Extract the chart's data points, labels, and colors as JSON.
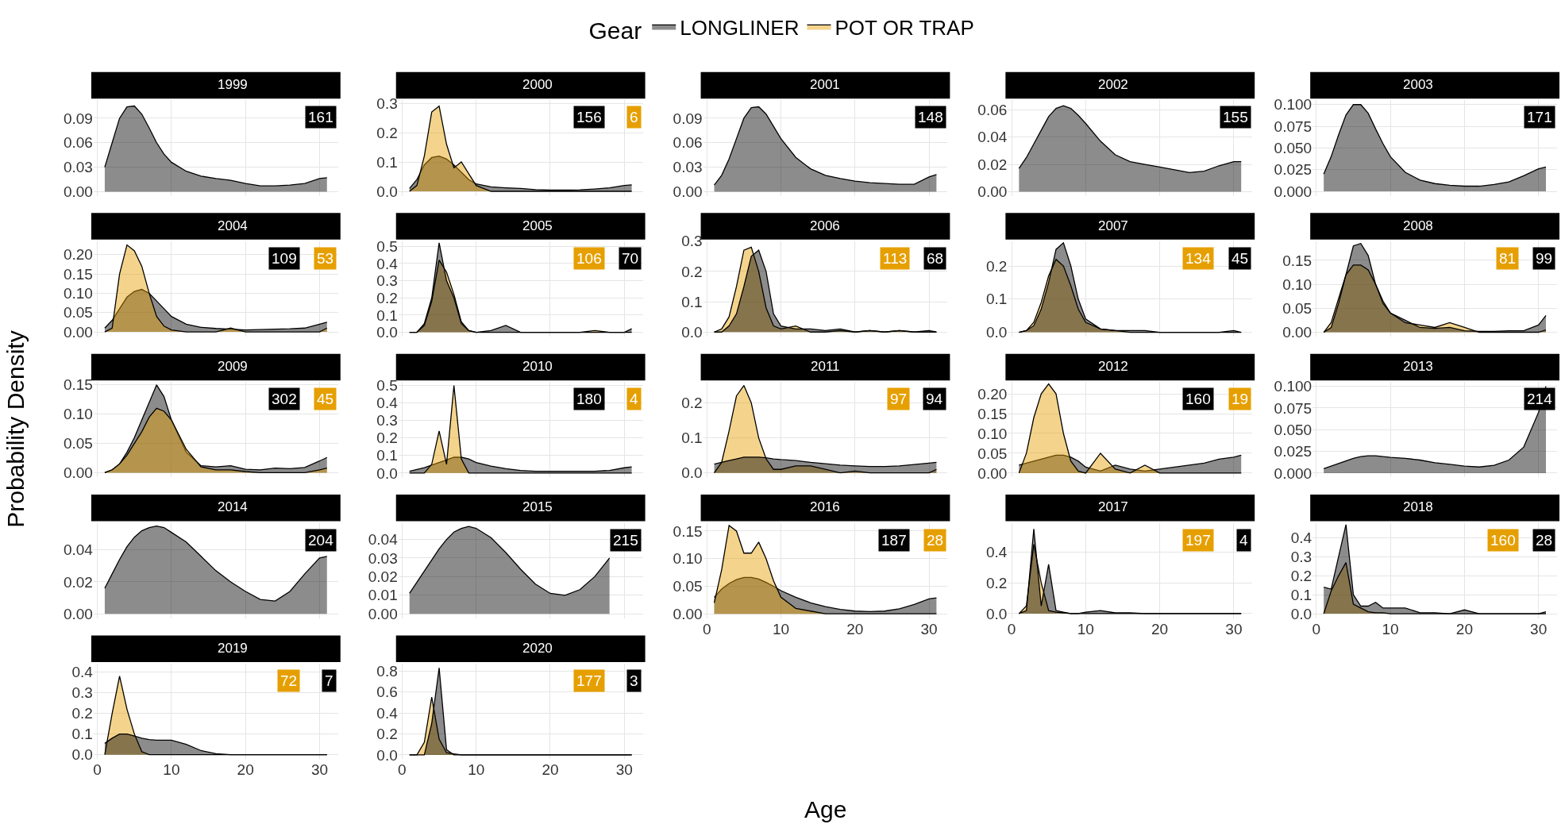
{
  "chart_data": [
    {
      "type": "area",
      "title": "1999",
      "tick_labels": "y",
      "grid": true,
      "x": [
        1,
        2,
        3,
        4,
        5,
        6,
        7,
        8,
        9,
        10,
        12,
        14,
        16,
        18,
        20,
        22,
        24,
        26,
        28,
        30,
        31
      ],
      "xlim": [
        -0.5,
        32.5
      ],
      "xticks": [
        0,
        10,
        20,
        30
      ],
      "ylim": [
        -0.005,
        0.112
      ],
      "yticks": [
        {
          "value": 0,
          "label": "0.00"
        },
        {
          "value": 0.03,
          "label": "0.03"
        },
        {
          "value": 0.06,
          "label": "0.06"
        },
        {
          "value": 0.09,
          "label": "0.09"
        }
      ],
      "annotations": [
        "161"
      ],
      "series": [
        {
          "color": "#000000",
          "values": [
            0.03,
            0.06,
            0.09,
            0.104,
            0.105,
            0.095,
            0.078,
            0.06,
            0.046,
            0.036,
            0.025,
            0.019,
            0.016,
            0.014,
            0.01,
            0.007,
            0.007,
            0.008,
            0.01,
            0.016,
            0.017
          ]
        }
      ]
    },
    {
      "type": "area",
      "title": "2000",
      "tick_labels": "y",
      "grid": true,
      "legend": "top",
      "legend_title": "Gear",
      "x": [
        1,
        2,
        3,
        4,
        5,
        6,
        7,
        8,
        9,
        10,
        12,
        14,
        16,
        18,
        20,
        22,
        24,
        26,
        28,
        30,
        31
      ],
      "xlim": [
        -0.5,
        32.5
      ],
      "xticks": [
        0,
        10,
        20,
        30
      ],
      "ylim": [
        -0.015,
        0.31
      ],
      "yticks": [
        {
          "value": 0,
          "label": "0.0"
        },
        {
          "value": 0.1,
          "label": "0.1"
        },
        {
          "value": 0.2,
          "label": "0.2"
        },
        {
          "value": 0.3,
          "label": "0.3"
        }
      ],
      "annotations": [
        "156",
        "6"
      ],
      "series": [
        {
          "name": "LONGLINER",
          "color": "#000000",
          "values": [
            0.01,
            0.04,
            0.09,
            0.115,
            0.12,
            0.11,
            0.09,
            0.065,
            0.04,
            0.025,
            0.015,
            0.012,
            0.01,
            0.006,
            0.004,
            0.004,
            0.005,
            0.008,
            0.012,
            0.02,
            0.022
          ]
        },
        {
          "name": "POT OR TRAP",
          "color": "#e69f00",
          "values": [
            0,
            0.02,
            0.12,
            0.27,
            0.29,
            0.16,
            0.08,
            0.1,
            0.06,
            0.02,
            0,
            0,
            0,
            0,
            0,
            0,
            0,
            0,
            0,
            0,
            0
          ]
        }
      ]
    },
    {
      "type": "area",
      "title": "2001",
      "tick_labels": "y",
      "grid": true,
      "x": [
        1,
        2,
        3,
        4,
        5,
        6,
        7,
        8,
        9,
        10,
        12,
        14,
        16,
        18,
        20,
        22,
        24,
        26,
        28,
        30,
        31
      ],
      "xlim": [
        -0.5,
        32.5
      ],
      "xticks": [
        0,
        10,
        20,
        30
      ],
      "ylim": [
        -0.005,
        0.112
      ],
      "yticks": [
        {
          "value": 0,
          "label": "0.00"
        },
        {
          "value": 0.03,
          "label": "0.03"
        },
        {
          "value": 0.06,
          "label": "0.06"
        },
        {
          "value": 0.09,
          "label": "0.09"
        }
      ],
      "annotations": [
        "148"
      ],
      "series": [
        {
          "color": "#000000",
          "values": [
            0.008,
            0.02,
            0.04,
            0.065,
            0.09,
            0.103,
            0.104,
            0.095,
            0.08,
            0.065,
            0.042,
            0.028,
            0.02,
            0.016,
            0.013,
            0.011,
            0.01,
            0.009,
            0.009,
            0.018,
            0.021
          ]
        }
      ]
    },
    {
      "type": "area",
      "title": "2002",
      "tick_labels": "y",
      "grid": true,
      "x": [
        1,
        2,
        3,
        4,
        5,
        6,
        7,
        8,
        9,
        10,
        12,
        14,
        16,
        18,
        20,
        22,
        24,
        26,
        28,
        30,
        31
      ],
      "xlim": [
        -0.5,
        32.5
      ],
      "xticks": [
        0,
        10,
        20,
        30
      ],
      "ylim": [
        -0.003,
        0.067
      ],
      "yticks": [
        {
          "value": 0,
          "label": "0.00"
        },
        {
          "value": 0.02,
          "label": "0.02"
        },
        {
          "value": 0.04,
          "label": "0.04"
        },
        {
          "value": 0.06,
          "label": "0.06"
        }
      ],
      "annotations": [
        "155"
      ],
      "series": [
        {
          "color": "#000000",
          "values": [
            0.017,
            0.025,
            0.035,
            0.045,
            0.055,
            0.061,
            0.063,
            0.061,
            0.056,
            0.05,
            0.037,
            0.027,
            0.022,
            0.02,
            0.018,
            0.016,
            0.014,
            0.015,
            0.019,
            0.022,
            0.022
          ]
        }
      ]
    },
    {
      "type": "area",
      "title": "2003",
      "tick_labels": "y",
      "grid": true,
      "x": [
        1,
        2,
        3,
        4,
        5,
        6,
        7,
        8,
        9,
        10,
        12,
        14,
        16,
        18,
        20,
        22,
        24,
        26,
        28,
        30,
        31
      ],
      "xlim": [
        -0.5,
        32.5
      ],
      "xticks": [
        0,
        10,
        20,
        30
      ],
      "ylim": [
        -0.005,
        0.105
      ],
      "yticks": [
        {
          "value": 0,
          "label": "0.000"
        },
        {
          "value": 0.025,
          "label": "0.025"
        },
        {
          "value": 0.05,
          "label": "0.050"
        },
        {
          "value": 0.075,
          "label": "0.075"
        },
        {
          "value": 0.1,
          "label": "0.100"
        }
      ],
      "annotations": [
        "171"
      ],
      "series": [
        {
          "color": "#000000",
          "values": [
            0.02,
            0.04,
            0.065,
            0.088,
            0.1,
            0.1,
            0.09,
            0.072,
            0.055,
            0.04,
            0.022,
            0.013,
            0.009,
            0.007,
            0.006,
            0.006,
            0.008,
            0.011,
            0.018,
            0.026,
            0.028
          ]
        }
      ]
    },
    {
      "type": "area",
      "title": "2004",
      "tick_labels": "y",
      "grid": true,
      "x": [
        1,
        2,
        3,
        4,
        5,
        6,
        7,
        8,
        9,
        10,
        12,
        14,
        16,
        18,
        20,
        22,
        24,
        26,
        28,
        30,
        31
      ],
      "xlim": [
        -0.5,
        32.5
      ],
      "xticks": [
        0,
        10,
        20,
        30
      ],
      "ylim": [
        -0.012,
        0.235
      ],
      "yticks": [
        {
          "value": 0,
          "label": "0.00"
        },
        {
          "value": 0.05,
          "label": "0.05"
        },
        {
          "value": 0.1,
          "label": "0.10"
        },
        {
          "value": 0.15,
          "label": "0.15"
        },
        {
          "value": 0.2,
          "label": "0.20"
        }
      ],
      "annotations": [
        "109",
        "53"
      ],
      "series": [
        {
          "color": "#000000",
          "values": [
            0.01,
            0.03,
            0.06,
            0.09,
            0.105,
            0.11,
            0.1,
            0.08,
            0.06,
            0.04,
            0.02,
            0.012,
            0.009,
            0.007,
            0.005,
            0.006,
            0.007,
            0.008,
            0.01,
            0.02,
            0.025
          ]
        },
        {
          "color": "#e69f00",
          "values": [
            0,
            0.01,
            0.15,
            0.225,
            0.21,
            0.17,
            0.1,
            0.04,
            0.015,
            0.005,
            0,
            0,
            0,
            0.01,
            0,
            0,
            0,
            0,
            0,
            0,
            0.01
          ]
        }
      ]
    },
    {
      "type": "area",
      "title": "2005",
      "tick_labels": "y",
      "grid": true,
      "x": [
        1,
        2,
        3,
        4,
        5,
        6,
        7,
        8,
        9,
        10,
        12,
        14,
        16,
        18,
        20,
        22,
        24,
        26,
        28,
        30,
        31
      ],
      "xlim": [
        -0.5,
        32.5
      ],
      "xticks": [
        0,
        10,
        20,
        30
      ],
      "ylim": [
        -0.025,
        0.53
      ],
      "yticks": [
        {
          "value": 0,
          "label": "0.0"
        },
        {
          "value": 0.1,
          "label": "0.1"
        },
        {
          "value": 0.2,
          "label": "0.2"
        },
        {
          "value": 0.3,
          "label": "0.3"
        },
        {
          "value": 0.4,
          "label": "0.4"
        },
        {
          "value": 0.5,
          "label": "0.5"
        }
      ],
      "annotations": [
        "106",
        "70"
      ],
      "series": [
        {
          "color": "#e69f00",
          "values": [
            0,
            0,
            0.04,
            0.18,
            0.42,
            0.35,
            0.22,
            0.06,
            0.01,
            0,
            0,
            0,
            0,
            0,
            0,
            0,
            0,
            0.01,
            0,
            0,
            0
          ]
        },
        {
          "color": "#000000",
          "values": [
            0,
            0,
            0.05,
            0.2,
            0.52,
            0.3,
            0.2,
            0.05,
            0.01,
            0,
            0.01,
            0.04,
            0,
            0,
            0,
            0,
            0,
            0,
            0,
            0,
            0.02
          ]
        }
      ]
    },
    {
      "type": "area",
      "title": "2006",
      "tick_labels": "y",
      "grid": true,
      "x": [
        1,
        2,
        3,
        4,
        5,
        6,
        7,
        8,
        9,
        10,
        12,
        14,
        16,
        18,
        20,
        22,
        24,
        26,
        28,
        30,
        31
      ],
      "xlim": [
        -0.5,
        32.5
      ],
      "xticks": [
        0,
        10,
        20,
        30
      ],
      "ylim": [
        -0.015,
        0.3
      ],
      "yticks": [
        {
          "value": 0,
          "label": "0.0"
        },
        {
          "value": 0.1,
          "label": "0.1"
        },
        {
          "value": 0.2,
          "label": "0.2"
        },
        {
          "value": 0.3,
          "label": "0.3"
        }
      ],
      "annotations": [
        "113",
        "68"
      ],
      "series": [
        {
          "color": "#e69f00",
          "values": [
            0,
            0.01,
            0.05,
            0.15,
            0.27,
            0.28,
            0.2,
            0.08,
            0.02,
            0.01,
            0.02,
            0,
            0,
            0.005,
            0,
            0.005,
            0,
            0.005,
            0,
            0,
            0
          ]
        },
        {
          "color": "#000000",
          "values": [
            0,
            0,
            0.02,
            0.06,
            0.15,
            0.25,
            0.27,
            0.2,
            0.06,
            0.02,
            0.01,
            0.01,
            0.005,
            0.01,
            0,
            0.005,
            0,
            0.005,
            0,
            0.005,
            0
          ]
        }
      ]
    },
    {
      "type": "area",
      "title": "2007",
      "tick_labels": "y",
      "grid": true,
      "x": [
        1,
        2,
        3,
        4,
        5,
        6,
        7,
        8,
        9,
        10,
        12,
        14,
        16,
        18,
        20,
        22,
        24,
        26,
        28,
        30,
        31
      ],
      "xlim": [
        -0.5,
        32.5
      ],
      "xticks": [
        0,
        10,
        20,
        30
      ],
      "ylim": [
        -0.013,
        0.275
      ],
      "yticks": [
        {
          "value": 0,
          "label": "0.0"
        },
        {
          "value": 0.1,
          "label": "0.1"
        },
        {
          "value": 0.2,
          "label": "0.2"
        }
      ],
      "annotations": [
        "134",
        "45"
      ],
      "series": [
        {
          "color": "#e69f00",
          "values": [
            0,
            0.005,
            0.03,
            0.09,
            0.17,
            0.22,
            0.2,
            0.14,
            0.07,
            0.03,
            0.01,
            0.005,
            0,
            0,
            0,
            0,
            0,
            0,
            0,
            0,
            0
          ]
        },
        {
          "color": "#000000",
          "values": [
            0,
            0.005,
            0.02,
            0.07,
            0.15,
            0.25,
            0.27,
            0.2,
            0.1,
            0.04,
            0.01,
            0.005,
            0.005,
            0.005,
            0,
            0,
            0,
            0,
            0,
            0.005,
            0
          ]
        }
      ]
    },
    {
      "type": "area",
      "title": "2008",
      "tick_labels": "y",
      "grid": true,
      "x": [
        1,
        2,
        3,
        4,
        5,
        6,
        7,
        8,
        9,
        10,
        12,
        14,
        16,
        18,
        20,
        22,
        24,
        26,
        28,
        30,
        31
      ],
      "xlim": [
        -0.5,
        32.5
      ],
      "xticks": [
        0,
        10,
        20,
        30
      ],
      "ylim": [
        -0.009,
        0.19
      ],
      "yticks": [
        {
          "value": 0,
          "label": "0.00"
        },
        {
          "value": 0.05,
          "label": "0.05"
        },
        {
          "value": 0.1,
          "label": "0.10"
        },
        {
          "value": 0.15,
          "label": "0.15"
        }
      ],
      "annotations": [
        "81",
        "99"
      ],
      "series": [
        {
          "color": "#e69f00",
          "values": [
            0,
            0.02,
            0.07,
            0.12,
            0.14,
            0.14,
            0.13,
            0.1,
            0.065,
            0.04,
            0.02,
            0.015,
            0.01,
            0.02,
            0.01,
            0,
            0,
            0,
            0,
            0,
            0.005
          ]
        },
        {
          "color": "#000000",
          "values": [
            0,
            0.01,
            0.06,
            0.12,
            0.18,
            0.185,
            0.16,
            0.1,
            0.06,
            0.04,
            0.025,
            0.01,
            0.008,
            0.01,
            0.003,
            0.002,
            0.002,
            0.003,
            0.003,
            0.015,
            0.035
          ]
        }
      ]
    },
    {
      "type": "area",
      "title": "2009",
      "tick_labels": "y",
      "grid": true,
      "ylabel": "Probability Density",
      "x": [
        1,
        2,
        3,
        4,
        5,
        6,
        7,
        8,
        9,
        10,
        12,
        14,
        16,
        18,
        20,
        22,
        24,
        26,
        28,
        30,
        31
      ],
      "xlim": [
        -0.5,
        32.5
      ],
      "xticks": [
        0,
        10,
        20,
        30
      ],
      "ylim": [
        -0.008,
        0.155
      ],
      "yticks": [
        {
          "value": 0,
          "label": "0.00"
        },
        {
          "value": 0.05,
          "label": "0.05"
        },
        {
          "value": 0.1,
          "label": "0.10"
        },
        {
          "value": 0.15,
          "label": "0.15"
        }
      ],
      "annotations": [
        "302",
        "45"
      ],
      "series": [
        {
          "color": "#000000",
          "values": [
            0,
            0.005,
            0.015,
            0.035,
            0.06,
            0.09,
            0.12,
            0.15,
            0.13,
            0.09,
            0.035,
            0.012,
            0.01,
            0.012,
            0.006,
            0.005,
            0.008,
            0.007,
            0.009,
            0.02,
            0.026
          ]
        },
        {
          "color": "#e69f00",
          "values": [
            0,
            0.005,
            0.015,
            0.03,
            0.05,
            0.07,
            0.095,
            0.11,
            0.105,
            0.09,
            0.04,
            0.01,
            0.005,
            0.005,
            0.002,
            0,
            0,
            0,
            0,
            0.005,
            0.008
          ]
        }
      ]
    },
    {
      "type": "area",
      "title": "2010",
      "tick_labels": "y",
      "grid": true,
      "x": [
        1,
        2,
        3,
        4,
        5,
        6,
        7,
        8,
        9,
        10,
        12,
        14,
        16,
        18,
        20,
        22,
        24,
        26,
        28,
        30,
        31
      ],
      "xlim": [
        -0.5,
        32.5
      ],
      "xticks": [
        0,
        10,
        20,
        30
      ],
      "ylim": [
        -0.025,
        0.52
      ],
      "yticks": [
        {
          "value": 0,
          "label": "0.0"
        },
        {
          "value": 0.1,
          "label": "0.1"
        },
        {
          "value": 0.2,
          "label": "0.2"
        },
        {
          "value": 0.3,
          "label": "0.3"
        },
        {
          "value": 0.4,
          "label": "0.4"
        },
        {
          "value": 0.5,
          "label": "0.5"
        }
      ],
      "annotations": [
        "180",
        "4"
      ],
      "series": [
        {
          "color": "#000000",
          "values": [
            0.01,
            0.02,
            0.03,
            0.045,
            0.06,
            0.075,
            0.09,
            0.09,
            0.08,
            0.06,
            0.04,
            0.025,
            0.015,
            0.01,
            0.01,
            0.01,
            0.01,
            0.01,
            0.015,
            0.03,
            0.035
          ]
        },
        {
          "color": "#e69f00",
          "values": [
            0,
            0,
            0,
            0.05,
            0.24,
            0.05,
            0.5,
            0.08,
            0,
            0,
            0,
            0,
            0,
            0,
            0,
            0,
            0,
            0,
            0,
            0,
            0
          ]
        }
      ]
    },
    {
      "type": "area",
      "title": "2011",
      "tick_labels": "y",
      "grid": true,
      "x": [
        1,
        2,
        3,
        4,
        5,
        6,
        7,
        8,
        9,
        10,
        12,
        14,
        16,
        18,
        20,
        22,
        24,
        26,
        28,
        30,
        31
      ],
      "xlim": [
        -0.5,
        32.5
      ],
      "xticks": [
        0,
        10,
        20,
        30
      ],
      "ylim": [
        -0.013,
        0.26
      ],
      "yticks": [
        {
          "value": 0,
          "label": "0.0"
        },
        {
          "value": 0.1,
          "label": "0.1"
        },
        {
          "value": 0.2,
          "label": "0.2"
        }
      ],
      "annotations": [
        "97",
        "94"
      ],
      "series": [
        {
          "color": "#e69f00",
          "values": [
            0,
            0.03,
            0.12,
            0.22,
            0.25,
            0.2,
            0.1,
            0.04,
            0.01,
            0.01,
            0.02,
            0.02,
            0.01,
            0,
            0.005,
            0,
            0,
            0,
            0,
            0,
            0.01
          ]
        },
        {
          "color": "#000000",
          "values": [
            0.025,
            0.03,
            0.035,
            0.04,
            0.045,
            0.045,
            0.045,
            0.043,
            0.04,
            0.038,
            0.035,
            0.03,
            0.026,
            0.022,
            0.02,
            0.018,
            0.018,
            0.02,
            0.024,
            0.028,
            0.03
          ]
        }
      ]
    },
    {
      "type": "area",
      "title": "2012",
      "tick_labels": "y",
      "grid": true,
      "x": [
        1,
        2,
        3,
        4,
        5,
        6,
        7,
        8,
        9,
        10,
        12,
        14,
        16,
        18,
        20,
        22,
        24,
        26,
        28,
        30,
        31
      ],
      "xlim": [
        -0.5,
        32.5
      ],
      "xticks": [
        0,
        10,
        20,
        30
      ],
      "ylim": [
        -0.011,
        0.23
      ],
      "yticks": [
        {
          "value": 0,
          "label": "0.00"
        },
        {
          "value": 0.05,
          "label": "0.05"
        },
        {
          "value": 0.1,
          "label": "0.10"
        },
        {
          "value": 0.15,
          "label": "0.15"
        },
        {
          "value": 0.2,
          "label": "0.20"
        }
      ],
      "annotations": [
        "160",
        "19"
      ],
      "series": [
        {
          "color": "#000000",
          "values": [
            0.02,
            0.025,
            0.03,
            0.035,
            0.04,
            0.045,
            0.045,
            0.04,
            0.03,
            0.015,
            0.005,
            0.02,
            0.01,
            0.005,
            0.01,
            0.015,
            0.02,
            0.025,
            0.035,
            0.04,
            0.045
          ]
        },
        {
          "color": "#e69f00",
          "values": [
            0,
            0.05,
            0.14,
            0.2,
            0.225,
            0.2,
            0.1,
            0.03,
            0.005,
            0,
            0.05,
            0.01,
            0,
            0.02,
            0,
            0,
            0,
            0,
            0,
            0,
            0
          ]
        }
      ]
    },
    {
      "type": "area",
      "title": "2013",
      "tick_labels": "y",
      "grid": true,
      "x": [
        1,
        2,
        3,
        4,
        5,
        6,
        7,
        8,
        9,
        10,
        12,
        14,
        16,
        18,
        20,
        22,
        24,
        26,
        28,
        30,
        31
      ],
      "xlim": [
        -0.5,
        32.5
      ],
      "xticks": [
        0,
        10,
        20,
        30
      ],
      "ylim": [
        -0.005,
        0.105
      ],
      "yticks": [
        {
          "value": 0,
          "label": "0.000"
        },
        {
          "value": 0.025,
          "label": "0.025"
        },
        {
          "value": 0.05,
          "label": "0.050"
        },
        {
          "value": 0.075,
          "label": "0.075"
        },
        {
          "value": 0.1,
          "label": "0.100"
        }
      ],
      "annotations": [
        "214"
      ],
      "series": [
        {
          "color": "#000000",
          "values": [
            0.005,
            0.008,
            0.011,
            0.014,
            0.017,
            0.019,
            0.02,
            0.02,
            0.019,
            0.018,
            0.017,
            0.015,
            0.012,
            0.01,
            0.008,
            0.007,
            0.009,
            0.015,
            0.03,
            0.07,
            0.1
          ]
        }
      ]
    },
    {
      "type": "area",
      "title": "2014",
      "tick_labels": "y",
      "grid": true,
      "x": [
        1,
        2,
        3,
        4,
        5,
        6,
        7,
        8,
        9,
        10,
        12,
        14,
        16,
        18,
        20,
        22,
        24,
        26,
        28,
        30,
        31
      ],
      "xlim": [
        -0.5,
        32.5
      ],
      "xticks": [
        0,
        10,
        20,
        30
      ],
      "ylim": [
        -0.0028,
        0.057
      ],
      "yticks": [
        {
          "value": 0,
          "label": "0.00"
        },
        {
          "value": 0.02,
          "label": "0.02"
        },
        {
          "value": 0.04,
          "label": "0.04"
        }
      ],
      "annotations": [
        "204"
      ],
      "series": [
        {
          "color": "#000000",
          "values": [
            0.016,
            0.025,
            0.034,
            0.042,
            0.048,
            0.052,
            0.054,
            0.055,
            0.054,
            0.051,
            0.045,
            0.036,
            0.027,
            0.02,
            0.014,
            0.009,
            0.008,
            0.014,
            0.025,
            0.035,
            0.036
          ]
        }
      ]
    },
    {
      "type": "area",
      "title": "2015",
      "tick_labels": "y",
      "grid": true,
      "x": [
        1,
        2,
        3,
        4,
        5,
        6,
        7,
        8,
        9,
        10,
        12,
        14,
        16,
        18,
        20,
        22,
        24,
        26,
        28
      ],
      "xlim": [
        -0.5,
        32.5
      ],
      "xticks": [
        0,
        10,
        20,
        30
      ],
      "ylim": [
        -0.0024,
        0.049
      ],
      "yticks": [
        {
          "value": 0,
          "label": "0.00"
        },
        {
          "value": 0.01,
          "label": "0.01"
        },
        {
          "value": 0.02,
          "label": "0.02"
        },
        {
          "value": 0.03,
          "label": "0.03"
        },
        {
          "value": 0.04,
          "label": "0.04"
        }
      ],
      "annotations": [
        "215"
      ],
      "series": [
        {
          "color": "#000000",
          "values": [
            0.011,
            0.017,
            0.023,
            0.029,
            0.035,
            0.04,
            0.044,
            0.046,
            0.047,
            0.046,
            0.041,
            0.033,
            0.024,
            0.016,
            0.011,
            0.01,
            0.013,
            0.02,
            0.03
          ]
        }
      ]
    },
    {
      "type": "area",
      "title": "2016",
      "grid": true,
      "xlabel": "Age",
      "x": [
        1,
        2,
        3,
        4,
        5,
        6,
        7,
        8,
        9,
        10,
        12,
        14,
        16,
        18,
        20,
        22,
        24,
        26,
        28,
        30,
        31
      ],
      "xlim": [
        -0.5,
        32.5
      ],
      "xticks": [
        0,
        10,
        20,
        30
      ],
      "ylim": [
        -0.008,
        0.165
      ],
      "yticks": [
        {
          "value": 0,
          "label": "0.00"
        },
        {
          "value": 0.05,
          "label": "0.05"
        },
        {
          "value": 0.1,
          "label": "0.10"
        },
        {
          "value": 0.15,
          "label": "0.15"
        }
      ],
      "annotations": [
        "187",
        "28"
      ],
      "series": [
        {
          "color": "#000000",
          "values": [
            0.03,
            0.045,
            0.055,
            0.062,
            0.066,
            0.066,
            0.063,
            0.057,
            0.05,
            0.042,
            0.03,
            0.02,
            0.013,
            0.008,
            0.005,
            0.004,
            0.005,
            0.009,
            0.017,
            0.027,
            0.029
          ]
        },
        {
          "color": "#e69f00",
          "values": [
            0.02,
            0.08,
            0.16,
            0.15,
            0.11,
            0.11,
            0.13,
            0.1,
            0.06,
            0.03,
            0.01,
            0.005,
            0,
            0,
            0,
            0,
            0,
            0,
            0,
            0,
            0
          ]
        }
      ]
    },
    {
      "type": "area",
      "title": "2017",
      "grid": true,
      "x": [
        1,
        2,
        3,
        4,
        5,
        6,
        7,
        8,
        9,
        10,
        12,
        14,
        16,
        18,
        20,
        22,
        24,
        26,
        28,
        30,
        31
      ],
      "xlim": [
        -0.5,
        32.5
      ],
      "xticks": [
        0,
        10,
        20,
        30
      ],
      "ylim": [
        -0.03,
        0.59
      ],
      "yticks": [
        {
          "value": 0,
          "label": "0.0"
        },
        {
          "value": 0.2,
          "label": "0.2"
        },
        {
          "value": 0.4,
          "label": "0.4"
        }
      ],
      "annotations": [
        "197",
        "4"
      ],
      "series": [
        {
          "color": "#e69f00",
          "values": [
            0,
            0.05,
            0.45,
            0.2,
            0.02,
            0.01,
            0.005,
            0,
            0,
            0,
            0,
            0,
            0,
            0,
            0,
            0,
            0,
            0,
            0,
            0,
            0
          ]
        },
        {
          "color": "#000000",
          "values": [
            0,
            0.02,
            0.55,
            0.05,
            0.32,
            0.02,
            0.01,
            0,
            0,
            0.01,
            0.02,
            0.005,
            0.005,
            0,
            0,
            0,
            0,
            0,
            0,
            0,
            0
          ]
        }
      ]
    },
    {
      "type": "area",
      "title": "2018",
      "grid": true,
      "x": [
        1,
        2,
        3,
        4,
        5,
        6,
        7,
        8,
        9,
        10,
        12,
        14,
        16,
        18,
        20,
        22,
        24,
        26,
        28,
        30,
        31
      ],
      "xlim": [
        -0.5,
        32.5
      ],
      "xticks": [
        0,
        10,
        20,
        30
      ],
      "ylim": [
        -0.024,
        0.48
      ],
      "yticks": [
        {
          "value": 0,
          "label": "0.0"
        },
        {
          "value": 0.1,
          "label": "0.1"
        },
        {
          "value": 0.2,
          "label": "0.2"
        },
        {
          "value": 0.3,
          "label": "0.3"
        },
        {
          "value": 0.4,
          "label": "0.4"
        }
      ],
      "annotations": [
        "160",
        "28"
      ],
      "series": [
        {
          "color": "#e69f00",
          "values": [
            0,
            0.12,
            0.2,
            0.27,
            0.05,
            0.03,
            0.01,
            0.005,
            0.005,
            0,
            0,
            0,
            0,
            0,
            0,
            0,
            0,
            0,
            0,
            0,
            0
          ]
        },
        {
          "color": "#000000",
          "values": [
            0.14,
            0.13,
            0.3,
            0.47,
            0.1,
            0.04,
            0.04,
            0.06,
            0.03,
            0.03,
            0.03,
            0.005,
            0.005,
            0,
            0.02,
            0,
            0,
            0,
            0,
            0,
            0.01
          ]
        }
      ]
    },
    {
      "type": "area",
      "title": "2019",
      "grid": true,
      "x": [
        1,
        2,
        3,
        4,
        5,
        6,
        7,
        8,
        9,
        10,
        12,
        14,
        16,
        18,
        20,
        22,
        24,
        26,
        28,
        30,
        31
      ],
      "xlim": [
        -0.5,
        32.5
      ],
      "xticks": [
        0,
        10,
        20,
        30
      ],
      "ylim": [
        -0.021,
        0.44
      ],
      "yticks": [
        {
          "value": 0,
          "label": "0.0"
        },
        {
          "value": 0.1,
          "label": "0.1"
        },
        {
          "value": 0.2,
          "label": "0.2"
        },
        {
          "value": 0.3,
          "label": "0.3"
        },
        {
          "value": 0.4,
          "label": "0.4"
        }
      ],
      "annotations": [
        "72",
        "7"
      ],
      "series": [
        {
          "color": "#e69f00",
          "values": [
            0,
            0.2,
            0.38,
            0.22,
            0.1,
            0.015,
            0,
            0,
            0,
            0,
            0,
            0,
            0,
            0,
            0,
            0,
            0,
            0,
            0,
            0,
            0
          ]
        },
        {
          "color": "#000000",
          "values": [
            0.055,
            0.08,
            0.1,
            0.1,
            0.09,
            0.08,
            0.073,
            0.07,
            0.07,
            0.07,
            0.05,
            0.02,
            0.005,
            0,
            0,
            0,
            0,
            0,
            0,
            0,
            0
          ]
        }
      ]
    },
    {
      "type": "area",
      "title": "2020",
      "grid": true,
      "x": [
        1,
        2,
        3,
        4,
        5,
        6,
        7,
        8,
        9,
        10,
        12,
        14,
        16,
        18,
        20,
        22,
        24,
        26,
        28,
        30,
        31
      ],
      "xlim": [
        -0.5,
        32.5
      ],
      "xticks": [
        0,
        10,
        20,
        30
      ],
      "ylim": [
        -0.04,
        0.87
      ],
      "yticks": [
        {
          "value": 0,
          "label": "0.0"
        },
        {
          "value": 0.2,
          "label": "0.2"
        },
        {
          "value": 0.4,
          "label": "0.4"
        },
        {
          "value": 0.6,
          "label": "0.6"
        },
        {
          "value": 0.8,
          "label": "0.8"
        }
      ],
      "annotations": [
        "177",
        "3"
      ],
      "series": [
        {
          "color": "#e69f00",
          "values": [
            0,
            0,
            0.12,
            0.55,
            0.15,
            0.02,
            0.01,
            0,
            0,
            0,
            0,
            0,
            0,
            0,
            0,
            0,
            0,
            0,
            0,
            0,
            0
          ]
        },
        {
          "color": "#000000",
          "values": [
            0,
            0,
            0,
            0.3,
            0.83,
            0.05,
            0,
            0,
            0,
            0,
            0,
            0,
            0,
            0,
            0,
            0,
            0,
            0,
            0,
            0,
            0
          ]
        }
      ]
    }
  ]
}
